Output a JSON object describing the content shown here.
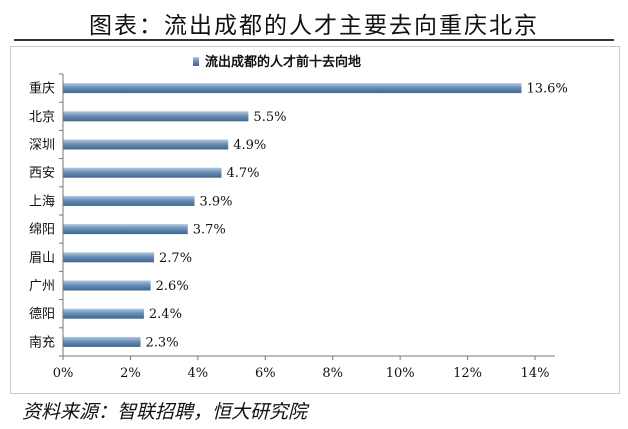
{
  "header": {
    "title": "图表：流出成都的人才主要去向重庆北京"
  },
  "footer": {
    "source": "资料来源：智联招聘，恒大研究院"
  },
  "colors": {
    "bar_top": "#b7c9dd",
    "bar_mid": "#6a8fb7",
    "bar_bottom": "#3d6690",
    "axis": "#777777"
  },
  "chart_data": {
    "type": "bar",
    "orientation": "horizontal",
    "legend": {
      "position": "top",
      "entries": [
        "流出成都的人才前十去向地"
      ]
    },
    "categories": [
      "重庆",
      "北京",
      "深圳",
      "西安",
      "上海",
      "绵阳",
      "眉山",
      "广州",
      "德阳",
      "南充"
    ],
    "series": [
      {
        "name": "流出成都的人才前十去向地",
        "values": [
          13.6,
          5.5,
          4.9,
          4.7,
          3.9,
          3.7,
          2.7,
          2.6,
          2.4,
          2.3
        ],
        "labels": [
          "13.6%",
          "5.5%",
          "4.9%",
          "4.7%",
          "3.9%",
          "3.7%",
          "2.7%",
          "2.6%",
          "2.4%",
          "2.3%"
        ]
      }
    ],
    "xlim": [
      0,
      14
    ],
    "xticks": [
      0,
      2,
      4,
      6,
      8,
      10,
      12,
      14
    ],
    "xtick_labels": [
      "0%",
      "2%",
      "4%",
      "6%",
      "8%",
      "10%",
      "12%",
      "14%"
    ],
    "grid": false
  }
}
